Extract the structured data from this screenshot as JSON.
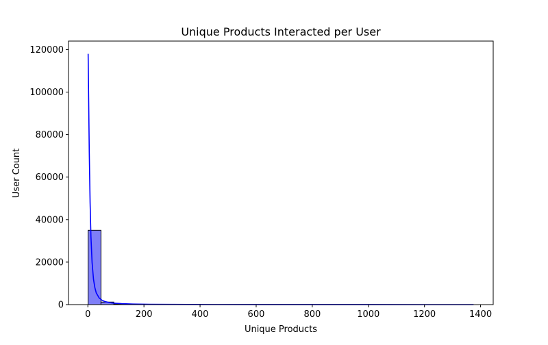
{
  "chart_data": {
    "type": "bar",
    "title": "Unique Products Interacted per User",
    "xlabel": "Unique Products",
    "ylabel": "User Count",
    "xlim": [
      -69,
      1445
    ],
    "ylim": [
      0,
      124000
    ],
    "x_ticks": [
      0,
      200,
      400,
      600,
      800,
      1000,
      1200,
      1400
    ],
    "y_ticks": [
      0,
      20000,
      40000,
      60000,
      80000,
      100000,
      120000
    ],
    "bin_edges": [
      1,
      46.8,
      92.6,
      138.4,
      184.2,
      230,
      275.8,
      321.6,
      367.4,
      413.2,
      459,
      504.8,
      550.6,
      596.4,
      642.2,
      688,
      733.8,
      779.6,
      825.4,
      871.2,
      917,
      962.8,
      1008.6,
      1054.4,
      1100.2,
      1146,
      1191.8,
      1237.6,
      1283.4,
      1329.2,
      1375
    ],
    "counts": [
      35000,
      1200,
      300,
      120,
      60,
      30,
      20,
      12,
      8,
      5,
      3,
      2,
      2,
      1,
      1,
      1,
      1,
      1,
      0,
      0,
      0,
      0,
      0,
      0,
      0,
      0,
      0,
      0,
      0,
      1
    ],
    "kde": {
      "x": [
        1,
        3,
        5,
        8,
        11,
        15,
        20,
        25,
        30,
        40,
        50,
        60,
        75,
        90,
        120,
        160,
        220,
        300,
        450,
        600,
        800,
        1000,
        1200,
        1375
      ],
      "y": [
        118000,
        95000,
        72000,
        48000,
        32000,
        20000,
        12000,
        8000,
        5500,
        3200,
        2100,
        1500,
        1000,
        700,
        450,
        280,
        160,
        90,
        40,
        20,
        10,
        5,
        2,
        0
      ]
    },
    "colors": {
      "bar_fill": "#7f7ff8",
      "bar_edge": "#000000",
      "kde_line": "#0000ff"
    },
    "grid": false,
    "legend": "none"
  }
}
